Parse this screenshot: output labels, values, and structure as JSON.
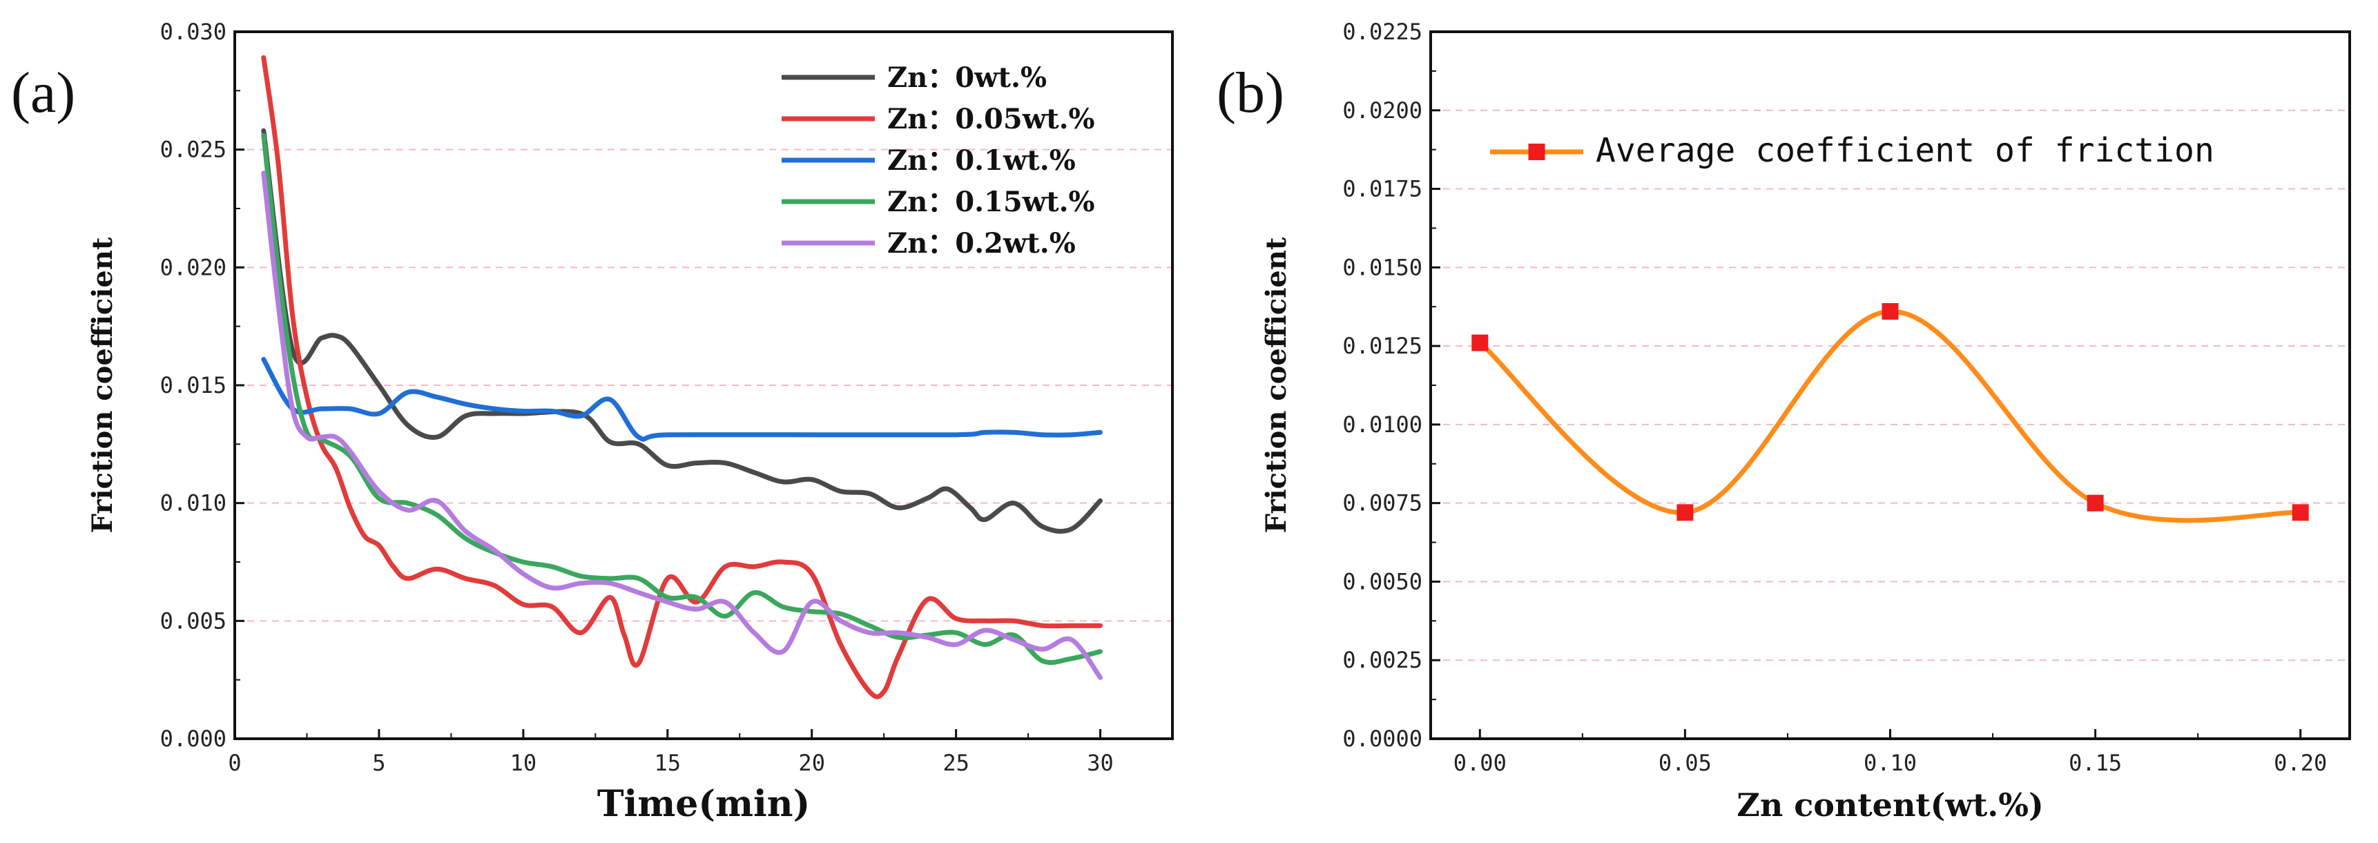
{
  "chart_data": [
    {
      "panel": "(a)",
      "type": "line",
      "title": "",
      "xlabel": "Time(min)",
      "ylabel": "Friction coefficient",
      "xlim": [
        0,
        32.5
      ],
      "ylim": [
        0,
        0.03
      ],
      "xticks": [
        0,
        5,
        10,
        15,
        20,
        25,
        30
      ],
      "xtick_labels": [
        "0",
        "5",
        "10",
        "15",
        "20",
        "25",
        "30"
      ],
      "yticks": [
        0,
        0.005,
        0.01,
        0.015,
        0.02,
        0.025,
        0.03
      ],
      "ytick_labels": [
        "0.000",
        "0.005",
        "0.010",
        "0.015",
        "0.020",
        "0.025",
        "0.030"
      ],
      "grid": "horizontal dashed pink",
      "legend_position": "top-right",
      "series": [
        {
          "name": "Zn：0wt.%",
          "color": "#4a4a4a",
          "x": [
            1,
            2,
            3,
            3.5,
            4,
            5,
            6,
            7,
            8,
            9,
            10,
            12,
            13,
            14,
            15,
            16,
            17,
            18,
            19,
            20,
            21,
            22,
            23,
            24,
            24.7,
            25.5,
            26,
            27,
            28,
            29,
            30
          ],
          "y": [
            0.0258,
            0.0165,
            0.017,
            0.0171,
            0.0167,
            0.015,
            0.0133,
            0.0128,
            0.0137,
            0.0138,
            0.0138,
            0.0138,
            0.0126,
            0.0125,
            0.0116,
            0.0117,
            0.0117,
            0.0113,
            0.0109,
            0.011,
            0.0105,
            0.0104,
            0.0098,
            0.0102,
            0.0106,
            0.0098,
            0.0093,
            0.01,
            0.009,
            0.0089,
            0.0101
          ]
        },
        {
          "name": "Zn：0.05wt.%",
          "color": "#e23b3b",
          "x": [
            1,
            1.5,
            2,
            2.5,
            3,
            3.5,
            4,
            4.5,
            5,
            5.5,
            6,
            7,
            8,
            9,
            10,
            11,
            12,
            13,
            13.5,
            14,
            15,
            16,
            17,
            18,
            19,
            20,
            21,
            22,
            22.5,
            23,
            24,
            25,
            26,
            27,
            28,
            29,
            30
          ],
          "y": [
            0.0289,
            0.0245,
            0.018,
            0.0145,
            0.0125,
            0.0115,
            0.0098,
            0.0086,
            0.0082,
            0.0073,
            0.0068,
            0.0072,
            0.0068,
            0.0065,
            0.0057,
            0.0056,
            0.0045,
            0.006,
            0.0044,
            0.0032,
            0.0068,
            0.0058,
            0.0073,
            0.0073,
            0.0075,
            0.007,
            0.004,
            0.002,
            0.002,
            0.0035,
            0.0059,
            0.0051,
            0.005,
            0.005,
            0.0048,
            0.0048,
            0.0048
          ]
        },
        {
          "name": "Zn：0.1wt.%",
          "color": "#1f6fd6",
          "x": [
            1,
            2,
            3,
            4,
            5,
            6,
            7,
            8,
            9,
            10,
            11,
            12,
            13,
            14,
            15,
            20,
            25,
            26,
            27,
            28,
            29,
            30
          ],
          "y": [
            0.0161,
            0.014,
            0.014,
            0.014,
            0.0138,
            0.0147,
            0.0145,
            0.0142,
            0.014,
            0.0139,
            0.0139,
            0.0137,
            0.0144,
            0.0128,
            0.0129,
            0.0129,
            0.0129,
            0.013,
            0.013,
            0.0129,
            0.0129,
            0.013
          ]
        },
        {
          "name": "Zn：0.15wt.%",
          "color": "#3aa75e",
          "x": [
            1,
            1.5,
            2,
            2.5,
            3,
            4,
            5,
            6,
            7,
            8,
            9,
            10,
            11,
            12,
            13,
            14,
            15,
            16,
            17,
            18,
            19,
            20,
            21,
            22,
            23,
            24,
            25,
            26,
            27,
            28,
            29,
            30
          ],
          "y": [
            0.0256,
            0.02,
            0.0155,
            0.013,
            0.0127,
            0.012,
            0.0102,
            0.01,
            0.0095,
            0.0085,
            0.0079,
            0.0075,
            0.0073,
            0.0069,
            0.0068,
            0.0068,
            0.006,
            0.006,
            0.0052,
            0.0062,
            0.0056,
            0.0054,
            0.0053,
            0.0048,
            0.0043,
            0.0044,
            0.0045,
            0.004,
            0.0044,
            0.0033,
            0.0034,
            0.0037
          ]
        },
        {
          "name": "Zn：0.2wt.%",
          "color": "#b57ce0",
          "x": [
            1,
            1.5,
            2,
            2.5,
            3,
            3.5,
            4,
            5,
            6,
            7,
            8,
            9,
            10,
            11,
            12,
            13,
            14,
            15,
            16,
            17,
            18,
            19,
            20,
            21,
            22,
            23,
            24,
            25,
            26,
            27,
            28,
            29,
            30
          ],
          "y": [
            0.024,
            0.0185,
            0.014,
            0.0128,
            0.0128,
            0.0128,
            0.0122,
            0.0105,
            0.0097,
            0.0101,
            0.0088,
            0.008,
            0.007,
            0.0064,
            0.0066,
            0.0066,
            0.0062,
            0.0058,
            0.0055,
            0.0058,
            0.0045,
            0.0037,
            0.0058,
            0.005,
            0.0045,
            0.0045,
            0.0043,
            0.004,
            0.0046,
            0.0042,
            0.0038,
            0.0042,
            0.0026
          ]
        }
      ]
    },
    {
      "panel": "(b)",
      "type": "line",
      "title": "",
      "xlabel": "Zn content(wt.%)",
      "ylabel": "Friction coefficient",
      "xlim": [
        -0.012,
        0.212
      ],
      "ylim": [
        0,
        0.0225
      ],
      "xticks": [
        0,
        0.05,
        0.1,
        0.15,
        0.2
      ],
      "xtick_labels": [
        "0.00",
        "0.05",
        "0.10",
        "0.15",
        "0.20"
      ],
      "yticks": [
        0,
        0.0025,
        0.005,
        0.0075,
        0.01,
        0.0125,
        0.015,
        0.0175,
        0.02,
        0.0225
      ],
      "ytick_labels": [
        "0.0000",
        "0.0025",
        "0.0050",
        "0.0075",
        "0.0100",
        "0.0125",
        "0.0150",
        "0.0175",
        "0.0200",
        "0.0225"
      ],
      "grid": "horizontal dashed pink",
      "legend_position": "top-center",
      "series": [
        {
          "name": "Average coefficient of friction",
          "line_color": "#ff8c1a",
          "marker_color": "#ee1c1c",
          "marker": "square",
          "x": [
            0,
            0.05,
            0.1,
            0.15,
            0.2
          ],
          "y": [
            0.0126,
            0.0072,
            0.0136,
            0.0075,
            0.0072
          ]
        }
      ]
    }
  ]
}
